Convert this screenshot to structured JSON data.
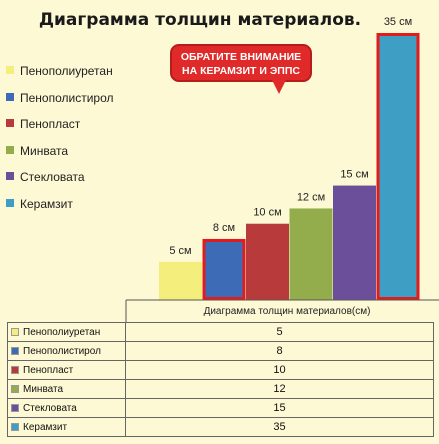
{
  "callout": {
    "line1": "ОБРАТИТЕ ВНИМАНИЕ",
    "line2": "НА КЕРАМЗИТ И ЭППС"
  },
  "chart_data": {
    "type": "bar",
    "title": "Диаграмма толщин материалов.",
    "xlabel": "Диаграмма толщин материалов(см)",
    "categories": [
      "Пенополиуретан",
      "Пенополистирол",
      "Пенопласт",
      "Минвата",
      "Стекловата",
      "Керамзит"
    ],
    "values": [
      5,
      8,
      10,
      12,
      15,
      35
    ],
    "data_labels": [
      "5 см",
      "8 см",
      "10 см",
      "12 см",
      "15 см",
      "35 см"
    ],
    "table_names": [
      "Пенополиуретан",
      "Пенополистирол",
      "Пенопласт",
      "Минвата",
      "Стекловата",
      "Керамзит"
    ],
    "table_values": [
      "5",
      "8",
      "10",
      "12",
      "15",
      "35"
    ],
    "colors": [
      "#f4ef7c",
      "#3d6bb5",
      "#b83a3a",
      "#94ad4c",
      "#6c4f9a",
      "#3f9ec4"
    ],
    "highlighted": [
      "Пенополистирол",
      "Керамзит"
    ],
    "highlight_color": "#e31b1b",
    "ylim": [
      0,
      35
    ],
    "grid": false,
    "legend": "left"
  }
}
